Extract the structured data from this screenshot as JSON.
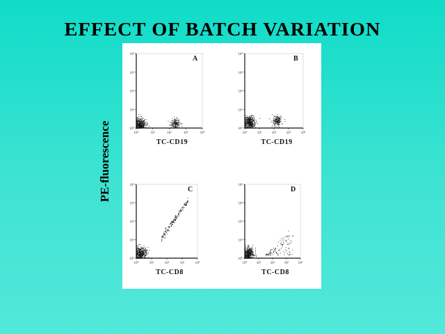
{
  "title": "EFFECT OF BATCH VARIATION",
  "y_axis_label": "PE-fluorescence",
  "colors": {
    "background": "#20dfcc",
    "panel": "#ffffff",
    "ink": "#111111"
  },
  "chart_data": [
    {
      "type": "scatter",
      "panel": "A",
      "xlabel": "TC-CD19",
      "ylabel": "PE-fluorescence",
      "xscale": "log",
      "yscale": "log",
      "xlim": [
        1,
        10000
      ],
      "ylim": [
        1,
        10000
      ],
      "x_ticks": [
        "10⁰",
        "10¹",
        "10²",
        "10³",
        "10⁴"
      ],
      "y_ticks": [
        "10⁰",
        "10¹",
        "10²",
        "10³",
        "10⁴"
      ],
      "clusters": [
        {
          "x": 1.6,
          "y": 1.6,
          "spread": 0.18,
          "density": "very high"
        },
        {
          "x": 220,
          "y": 1.8,
          "spread": 0.15,
          "density": "high"
        }
      ]
    },
    {
      "type": "scatter",
      "panel": "B",
      "xlabel": "TC-CD19",
      "ylabel": "PE-fluorescence",
      "xscale": "log",
      "yscale": "log",
      "xlim": [
        1,
        10000
      ],
      "ylim": [
        1,
        10000
      ],
      "x_ticks": [
        "10⁰",
        "10¹",
        "10²",
        "10³",
        "10⁴"
      ],
      "y_ticks": [
        "10⁰",
        "10¹",
        "10²",
        "10³",
        "10⁴"
      ],
      "clusters": [
        {
          "x": 2,
          "y": 2,
          "spread": 0.2,
          "density": "very high"
        },
        {
          "x": 160,
          "y": 2.4,
          "spread": 0.16,
          "density": "high"
        }
      ]
    },
    {
      "type": "scatter",
      "panel": "C",
      "xlabel": "TC-CD8",
      "ylabel": "PE-fluorescence",
      "xscale": "log",
      "yscale": "log",
      "xlim": [
        1,
        10000
      ],
      "ylim": [
        1,
        10000
      ],
      "x_ticks": [
        "10⁰",
        "10¹",
        "10²",
        "10³",
        "10⁴"
      ],
      "y_ticks": [
        "10⁰",
        "10¹",
        "10²",
        "10³",
        "10⁴"
      ],
      "clusters": [
        {
          "x": 1.8,
          "y": 1.8,
          "spread": 0.2,
          "density": "very high"
        },
        {
          "x_range": [
            40,
            2500
          ],
          "y_range": [
            12,
            1500
          ],
          "shape": "diagonal band",
          "density": "high"
        }
      ]
    },
    {
      "type": "scatter",
      "panel": "D",
      "xlabel": "TC-CD8",
      "ylabel": "PE-fluorescence",
      "xscale": "log",
      "yscale": "log",
      "xlim": [
        1,
        10000
      ],
      "ylim": [
        1,
        10000
      ],
      "x_ticks": [
        "10⁰",
        "10¹",
        "10²",
        "10³",
        "10⁴"
      ],
      "y_ticks": [
        "10⁰",
        "10¹",
        "10²",
        "10³",
        "10⁴"
      ],
      "clusters": [
        {
          "x": 1.8,
          "y": 1.8,
          "spread": 0.2,
          "density": "very high"
        },
        {
          "x_range": [
            30,
            3000
          ],
          "y_range": [
            1.5,
            60
          ],
          "shape": "diffuse fan",
          "density": "low"
        }
      ]
    }
  ]
}
